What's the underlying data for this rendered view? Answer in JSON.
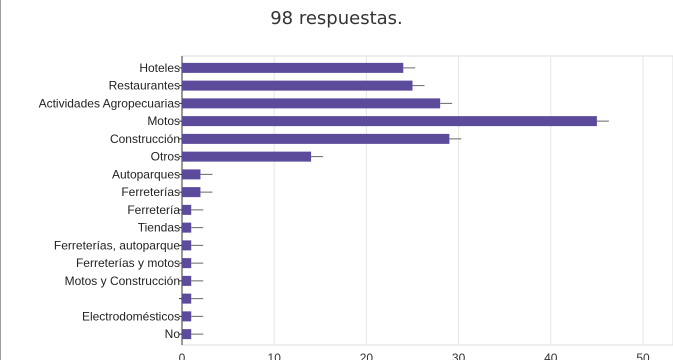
{
  "header": {
    "subtitle": "98 respuestas."
  },
  "chart_data": {
    "type": "bar",
    "orientation": "horizontal",
    "title": "",
    "xlabel": "",
    "ylabel": "",
    "categories": [
      "Hoteles",
      "Restaurantes",
      "Actividades Agropecuarias",
      "Motos",
      "Construcción",
      "Otros",
      "Autoparques",
      "Ferreterías",
      "Ferretería",
      "Tiendas",
      "Ferreterías, autoparque",
      "Ferreterías y motos",
      "Motos y Construcción",
      "",
      "Electrodomésticos",
      "No"
    ],
    "values": [
      24,
      25,
      28,
      45,
      29,
      14,
      2,
      2,
      1,
      1,
      1,
      1,
      1,
      1,
      1,
      1
    ],
    "xlim": [
      0,
      50
    ],
    "xticks": [
      0,
      10,
      20,
      30,
      40,
      50
    ],
    "grid": true,
    "error_bars": true,
    "colors": {
      "bar": "#5b4b9a",
      "grid": "#e6e6e6",
      "axis": "#333333",
      "error": "#666666"
    }
  }
}
